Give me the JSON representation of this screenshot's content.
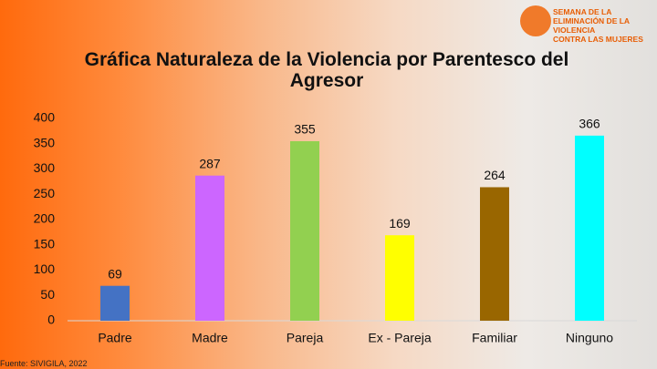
{
  "logo": [
    "SEMANA DE LA",
    "ELIMINACIÓN DE LA VIOLENCIA",
    "CONTRA LAS MUJERES"
  ],
  "source": "Fuente: SIVIGILA, 2022",
  "chart_data": {
    "type": "bar",
    "title": "Gráfica Naturaleza de la Violencia por Parentesco del Agresor",
    "categories": [
      "Padre",
      "Madre",
      "Pareja",
      "Ex - Pareja",
      "Familiar",
      "Ninguno"
    ],
    "values": [
      69,
      287,
      355,
      169,
      264,
      366
    ],
    "colors": [
      "#4472c4",
      "#cc66ff",
      "#92d050",
      "#ffff00",
      "#996600",
      "#00ffff"
    ],
    "ylim": [
      0,
      400
    ],
    "yticks": [
      0,
      50,
      100,
      150,
      200,
      250,
      300,
      350,
      400
    ],
    "grid": false
  }
}
